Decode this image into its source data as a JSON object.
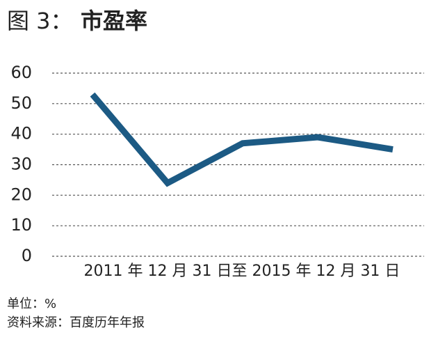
{
  "chart_data": {
    "type": "line",
    "title_prefix": "图 3：",
    "title": "市盈率",
    "x_label": "2011 年 12 月 31 日至 2015 年 12 月 31 日",
    "categories": [
      null,
      null,
      null,
      null,
      null
    ],
    "series": [
      {
        "color": "#1c5a84",
        "values": [
          53,
          24,
          37,
          39,
          35
        ]
      }
    ],
    "ylim": [
      0,
      60
    ],
    "yticks": [
      0,
      10,
      20,
      30,
      40,
      50,
      60
    ],
    "grid": true,
    "notes": [
      "单位：%",
      "资料来源：百度历年年报"
    ]
  }
}
